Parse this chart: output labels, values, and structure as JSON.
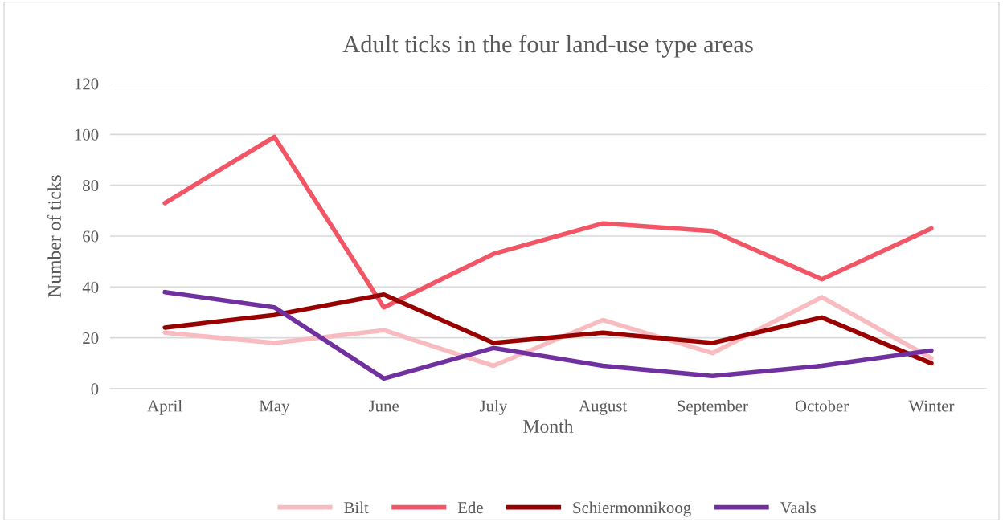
{
  "chart_data": {
    "type": "line",
    "title": "Adult ticks in the four land-use type areas",
    "xlabel": "Month",
    "ylabel": "Number of ticks",
    "categories": [
      "April",
      "May",
      "June",
      "July",
      "August",
      "September",
      "October",
      "Winter"
    ],
    "series": [
      {
        "name": "Bilt",
        "color": "#f8bcc0",
        "values": [
          22,
          18,
          23,
          9,
          27,
          14,
          36,
          12
        ]
      },
      {
        "name": "Ede",
        "color": "#f25565",
        "values": [
          73,
          99,
          32,
          53,
          65,
          62,
          43,
          63
        ]
      },
      {
        "name": "Schiermonnikoog",
        "color": "#990000",
        "values": [
          24,
          29,
          37,
          18,
          22,
          18,
          28,
          10
        ]
      },
      {
        "name": "Vaals",
        "color": "#7030a0",
        "values": [
          38,
          32,
          4,
          16,
          9,
          5,
          9,
          15
        ]
      }
    ],
    "ylim": [
      0,
      120
    ],
    "yticks": [
      0,
      20,
      40,
      60,
      80,
      100,
      120
    ],
    "grid": "y",
    "legend": "bottom",
    "marker": "none",
    "line_style": "solid"
  }
}
